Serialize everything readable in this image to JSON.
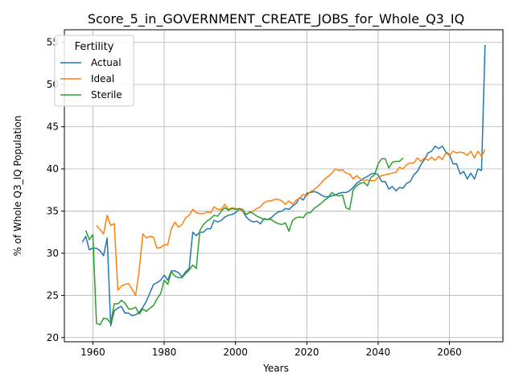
{
  "chart_data": {
    "type": "line",
    "title": "Score_5_in_GOVERNMENT_CREATE_JOBS_for_Whole_Q3_IQ",
    "xlabel": "Years",
    "ylabel": "% of Whole Q3_IQ Population",
    "xlim": [
      1952,
      2075
    ],
    "ylim": [
      19.5,
      56.5
    ],
    "xticks": [
      1960,
      1980,
      2000,
      2020,
      2040,
      2060
    ],
    "yticks": [
      20,
      25,
      30,
      35,
      40,
      45,
      50,
      55
    ],
    "grid": true,
    "legend": {
      "title": "Fertility",
      "placement": "upper-left"
    },
    "series": [
      {
        "name": "Actual",
        "color": "#1f77b4",
        "x": [
          1957,
          1958,
          1959,
          1960,
          1961,
          1962,
          1963,
          1964,
          1965,
          1966,
          1967,
          1968,
          1969,
          1970,
          1971,
          1972,
          1973,
          1974,
          1975,
          1976,
          1977,
          1978,
          1979,
          1980,
          1981,
          1982,
          1983,
          1984,
          1985,
          1986,
          1987,
          1988,
          1989,
          1990,
          1991,
          1992,
          1993,
          1994,
          1995,
          1996,
          1997,
          1998,
          1999,
          2000,
          2001,
          2002,
          2003,
          2004,
          2005,
          2006,
          2007,
          2008,
          2009,
          2010,
          2011,
          2012,
          2013,
          2014,
          2015,
          2016,
          2017,
          2018,
          2019,
          2020,
          2021,
          2022,
          2023,
          2024,
          2025,
          2026,
          2027,
          2028,
          2029,
          2030,
          2031,
          2032,
          2033,
          2034,
          2035,
          2036,
          2037,
          2038,
          2039,
          2040,
          2041,
          2042,
          2043,
          2044,
          2045,
          2046,
          2047,
          2048,
          2049,
          2050,
          2051,
          2052,
          2053,
          2054,
          2055,
          2056,
          2057,
          2058,
          2059,
          2060,
          2061,
          2062,
          2063,
          2064,
          2065,
          2066,
          2067,
          2068,
          2069,
          2070
        ],
        "values": [
          31.3,
          32.0,
          30.4,
          30.6,
          30.6,
          30.3,
          29.7,
          31.8,
          21.4,
          23.2,
          23.5,
          23.7,
          22.9,
          22.9,
          22.6,
          22.7,
          23.0,
          23.6,
          24.3,
          25.3,
          26.3,
          26.5,
          26.8,
          27.4,
          26.8,
          27.9,
          27.9,
          27.7,
          27.2,
          27.8,
          28.2,
          32.5,
          32.1,
          32.5,
          32.5,
          32.9,
          32.9,
          33.9,
          33.7,
          33.9,
          34.3,
          34.5,
          34.6,
          34.8,
          35.2,
          35.0,
          34.3,
          33.9,
          33.7,
          33.8,
          33.5,
          34.1,
          34.0,
          34.2,
          34.6,
          34.9,
          35.0,
          35.3,
          35.2,
          35.6,
          35.9,
          36.6,
          36.3,
          37.1,
          37.2,
          37.3,
          37.2,
          36.9,
          36.7,
          36.7,
          36.8,
          36.9,
          37.1,
          37.2,
          37.2,
          37.4,
          37.8,
          38.3,
          38.6,
          38.9,
          39.1,
          39.4,
          39.5,
          39.3,
          38.5,
          38.5,
          37.6,
          37.9,
          37.4,
          37.8,
          37.7,
          38.3,
          38.5,
          39.3,
          39.7,
          40.5,
          41.1,
          41.9,
          42.1,
          42.7,
          42.4,
          42.7,
          42.0,
          41.7,
          40.6,
          40.6,
          39.4,
          39.7,
          38.8,
          39.5,
          38.8,
          40.0,
          39.8,
          54.7
        ]
      },
      {
        "name": "Ideal",
        "color": "#ff7f0e",
        "x": [
          1961,
          1962,
          1963,
          1964,
          1965,
          1966,
          1967,
          1968,
          1969,
          1970,
          1971,
          1972,
          1973,
          1974,
          1975,
          1976,
          1977,
          1978,
          1979,
          1980,
          1981,
          1982,
          1983,
          1984,
          1985,
          1986,
          1987,
          1988,
          1989,
          1990,
          1991,
          1992,
          1993,
          1994,
          1995,
          1996,
          1997,
          1998,
          1999,
          2000,
          2001,
          2002,
          2003,
          2004,
          2005,
          2006,
          2007,
          2008,
          2009,
          2010,
          2011,
          2012,
          2013,
          2014,
          2015,
          2016,
          2017,
          2018,
          2019,
          2020,
          2021,
          2022,
          2023,
          2024,
          2025,
          2026,
          2027,
          2028,
          2029,
          2030,
          2031,
          2032,
          2033,
          2034,
          2035,
          2036,
          2037,
          2038,
          2039,
          2040,
          2041,
          2042,
          2043,
          2044,
          2045,
          2046,
          2047,
          2048,
          2049,
          2050,
          2051,
          2052,
          2053,
          2054,
          2055,
          2056,
          2057,
          2058,
          2059,
          2060,
          2061,
          2062,
          2063,
          2064,
          2065,
          2066,
          2067,
          2068,
          2069,
          2070
        ],
        "values": [
          33.3,
          32.8,
          32.3,
          34.5,
          33.3,
          33.5,
          25.6,
          26.1,
          26.3,
          26.4,
          25.7,
          25.0,
          28.0,
          32.3,
          31.8,
          32.0,
          31.9,
          30.6,
          30.7,
          31.0,
          31.0,
          32.9,
          33.7,
          33.1,
          33.4,
          34.2,
          34.5,
          35.2,
          34.8,
          34.7,
          34.7,
          34.9,
          34.8,
          35.5,
          35.2,
          35.2,
          35.8,
          35.2,
          35.4,
          35.3,
          35.2,
          35.0,
          34.6,
          34.8,
          35.0,
          35.3,
          35.5,
          36.0,
          36.2,
          36.2,
          36.4,
          36.4,
          36.2,
          35.8,
          36.2,
          35.8,
          36.3,
          36.5,
          37.0,
          36.8,
          37.3,
          37.5,
          37.9,
          38.3,
          38.8,
          39.1,
          39.5,
          40.0,
          39.8,
          39.9,
          39.5,
          39.4,
          38.8,
          39.2,
          38.8,
          38.6,
          38.7,
          38.6,
          38.6,
          39.0,
          39.2,
          39.3,
          39.4,
          39.5,
          39.6,
          40.2,
          40.0,
          40.5,
          40.7,
          40.7,
          41.3,
          40.9,
          41.3,
          41.0,
          41.4,
          41.0,
          41.5,
          41.1,
          41.9,
          41.6,
          42.1,
          41.9,
          42.0,
          41.9,
          41.6,
          42.1,
          41.3,
          42.1,
          41.5,
          42.3
        ]
      },
      {
        "name": "Sterile",
        "color": "#2ca02c",
        "x": [
          1958,
          1959,
          1960,
          1961,
          1962,
          1963,
          1964,
          1965,
          1966,
          1967,
          1968,
          1969,
          1970,
          1971,
          1972,
          1973,
          1974,
          1975,
          1976,
          1977,
          1978,
          1979,
          1980,
          1981,
          1982,
          1983,
          1984,
          1985,
          1986,
          1987,
          1988,
          1989,
          1990,
          1991,
          1992,
          1993,
          1994,
          1995,
          1996,
          1997,
          1998,
          1999,
          2000,
          2001,
          2002,
          2003,
          2004,
          2005,
          2006,
          2007,
          2008,
          2009,
          2010,
          2011,
          2012,
          2013,
          2014,
          2015,
          2016,
          2017,
          2018,
          2019,
          2020,
          2021,
          2022,
          2023,
          2024,
          2025,
          2026,
          2027,
          2028,
          2029,
          2030,
          2031,
          2032,
          2033,
          2034,
          2035,
          2036,
          2037,
          2038,
          2039,
          2040,
          2041,
          2042,
          2043,
          2044,
          2045,
          2046,
          2047
        ],
        "values": [
          32.7,
          31.6,
          32.2,
          21.7,
          21.5,
          22.3,
          22.2,
          21.7,
          24.0,
          24.0,
          24.4,
          24.1,
          23.4,
          23.4,
          23.6,
          22.8,
          23.4,
          23.1,
          23.5,
          23.8,
          24.6,
          25.2,
          26.8,
          26.3,
          27.8,
          27.3,
          27.1,
          27.1,
          27.6,
          28.0,
          28.6,
          28.2,
          32.7,
          33.4,
          33.8,
          34.1,
          34.5,
          34.4,
          35.0,
          35.4,
          35.1,
          35.3,
          35.2,
          35.3,
          35.2,
          34.6,
          34.9,
          34.7,
          34.4,
          34.2,
          34.0,
          34.0,
          34.0,
          33.7,
          33.5,
          33.4,
          33.6,
          32.6,
          33.9,
          34.2,
          34.3,
          34.2,
          34.8,
          34.8,
          35.3,
          35.6,
          35.9,
          36.3,
          36.6,
          37.2,
          36.9,
          36.8,
          36.9,
          35.4,
          35.2,
          37.5,
          38.0,
          38.3,
          38.4,
          38.0,
          39.0,
          39.3,
          40.6,
          41.2,
          41.2,
          40.1,
          40.8,
          40.9,
          40.9,
          41.3
        ]
      }
    ]
  }
}
